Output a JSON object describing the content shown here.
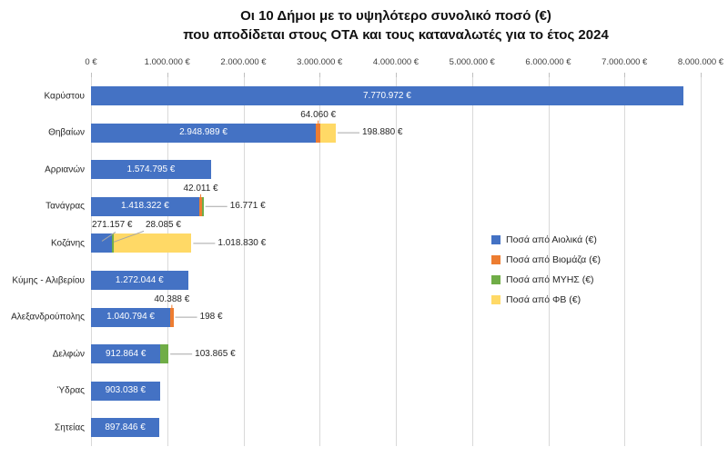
{
  "title": {
    "line1": "Οι 10 Δήμοι με το υψηλότερο συνολικό ποσό (€)",
    "line2": "που αποδίδεται στους ΟΤΑ και τους καταναλωτές για το έτος 2024"
  },
  "chart_data": {
    "type": "bar",
    "orientation": "horizontal",
    "stacked": true,
    "title": "Οι 10 Δήμοι με το υψηλότερο συνολικό ποσό (€) που αποδίδεται στους ΟΤΑ και τους καταναλωτές για το έτος 2024",
    "x_axis": {
      "min": 0,
      "max": 8000000,
      "tick_step": 1000000,
      "tick_labels": [
        "0 €",
        "1.000.000 €",
        "2.000.000 €",
        "3.000.000 €",
        "4.000.000 €",
        "5.000.000 €",
        "6.000.000 €",
        "7.000.000 €",
        "8.000.000 €"
      ],
      "gridlines": true
    },
    "legend_position": "right-middle",
    "series": [
      {
        "key": "aiolika",
        "name": "Ποσά από Αιολικά (€)",
        "color": "#4472C4"
      },
      {
        "key": "viomaza",
        "name": "Ποσά από Βιομάζα (€)",
        "color": "#ED7D31"
      },
      {
        "key": "myhs",
        "name": "Ποσά από ΜΥΗΣ (€)",
        "color": "#70AD47"
      },
      {
        "key": "fv",
        "name": "Ποσά από ΦΒ (€)",
        "color": "#FFD966"
      }
    ],
    "categories": [
      {
        "name": "Καρύστου",
        "segments": [
          {
            "series": "aiolika",
            "value": 7770972,
            "label": "7.770.972 €",
            "label_pos": "inside"
          }
        ]
      },
      {
        "name": "Θηβαίων",
        "segments": [
          {
            "series": "aiolika",
            "value": 2948989,
            "label": "2.948.989 €",
            "label_pos": "inside"
          },
          {
            "series": "viomaza",
            "value": 64060,
            "label": "64.060 €",
            "label_pos": "above"
          },
          {
            "series": "fv",
            "value": 198880,
            "label": "198.880 €",
            "label_pos": "right"
          }
        ]
      },
      {
        "name": "Αρριανών",
        "segments": [
          {
            "series": "aiolika",
            "value": 1574795,
            "label": "1.574.795 €",
            "label_pos": "inside"
          }
        ]
      },
      {
        "name": "Τανάγρας",
        "segments": [
          {
            "series": "aiolika",
            "value": 1418322,
            "label": "1.418.322 €",
            "label_pos": "inside"
          },
          {
            "series": "viomaza",
            "value": 42011,
            "label": "42.011 €",
            "label_pos": "above"
          },
          {
            "series": "myhs",
            "value": 16771,
            "label": "16.771 €",
            "label_pos": "right"
          }
        ]
      },
      {
        "name": "Κοζάνης",
        "segments": [
          {
            "series": "aiolika",
            "value": 271157,
            "label": "271.157 €",
            "label_pos": "above-left"
          },
          {
            "series": "myhs",
            "value": 28085,
            "label": "28.085 €",
            "label_pos": "above-callout"
          },
          {
            "series": "fv",
            "value": 1018830,
            "label": "1.018.830 €",
            "label_pos": "right"
          }
        ]
      },
      {
        "name": "Κύμης - Αλιβερίου",
        "segments": [
          {
            "series": "aiolika",
            "value": 1272044,
            "label": "1.272.044 €",
            "label_pos": "inside"
          }
        ]
      },
      {
        "name": "Αλεξανδρούπολης",
        "segments": [
          {
            "series": "aiolika",
            "value": 1040794,
            "label": "1.040.794 €",
            "label_pos": "inside"
          },
          {
            "series": "viomaza",
            "value": 40388,
            "label": "40.388 €",
            "label_pos": "above"
          },
          {
            "series": "fv",
            "value": 198,
            "label": "198 €",
            "label_pos": "right"
          }
        ]
      },
      {
        "name": "Δελφών",
        "segments": [
          {
            "series": "aiolika",
            "value": 912864,
            "label": "912.864 €",
            "label_pos": "inside"
          },
          {
            "series": "myhs",
            "value": 103865,
            "label": "103.865 €",
            "label_pos": "right"
          }
        ]
      },
      {
        "name": "Ύδρας",
        "segments": [
          {
            "series": "aiolika",
            "value": 903038,
            "label": "903.038 €",
            "label_pos": "inside"
          }
        ]
      },
      {
        "name": "Σητείας",
        "segments": [
          {
            "series": "aiolika",
            "value": 897846,
            "label": "897.846 €",
            "label_pos": "inside"
          }
        ]
      }
    ]
  },
  "colors": {
    "grid": "#D9D9D9",
    "tick": "#BFBFBF",
    "leader": "#A6A6A6",
    "label_dark": "#262626",
    "label_light": "#FFFFFF",
    "background": "#FFFFFF"
  }
}
